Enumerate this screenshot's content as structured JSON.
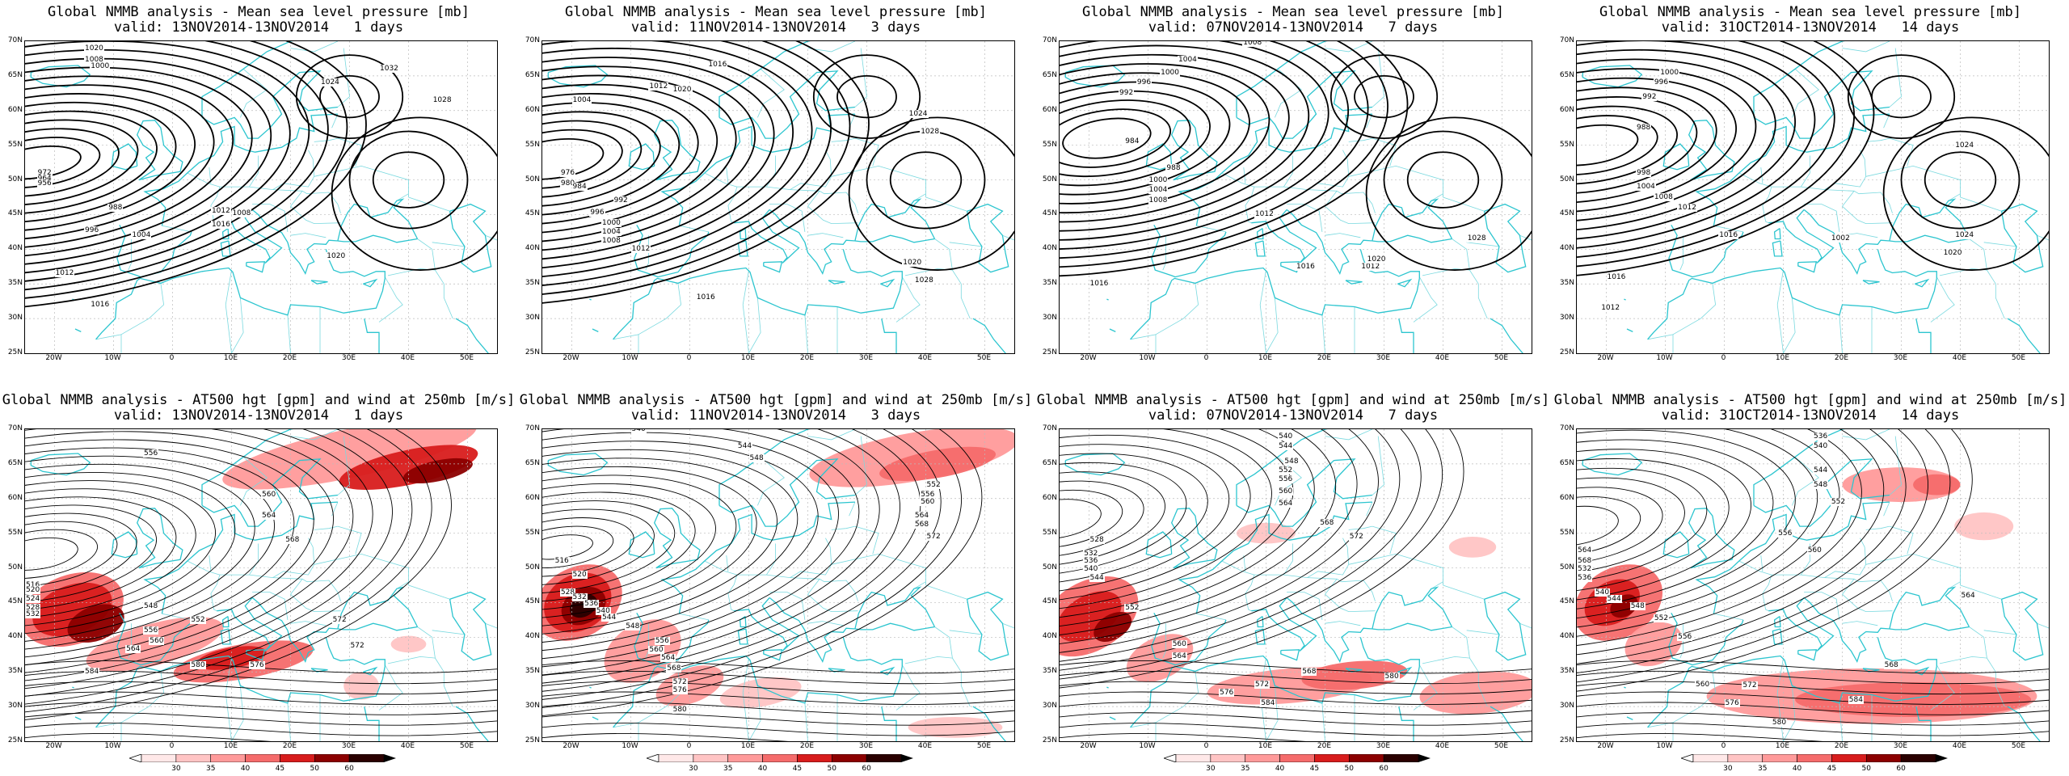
{
  "panels": [
    {
      "title": "Global NMMB analysis - Mean sea level pressure [mb]",
      "valid": "valid: 13NOV2014-13NOV2014   1 days",
      "kind": "mslp"
    },
    {
      "title": "Global NMMB analysis - Mean sea level pressure [mb]",
      "valid": "valid: 11NOV2014-13NOV2014   3 days",
      "kind": "mslp"
    },
    {
      "title": "Global NMMB analysis - Mean sea level pressure [mb]",
      "valid": "valid: 07NOV2014-13NOV2014   7 days",
      "kind": "mslp"
    },
    {
      "title": "Global NMMB analysis - Mean sea level pressure [mb]",
      "valid": "valid: 31OCT2014-13NOV2014   14 days",
      "kind": "mslp"
    },
    {
      "title": "Global NMMB analysis - AT500 hgt [gpm] and wind at 250mb [m/s]",
      "valid": "valid: 13NOV2014-13NOV2014   1 days",
      "kind": "z500"
    },
    {
      "title": "Global NMMB analysis - AT500 hgt [gpm] and wind at 250mb [m/s]",
      "valid": "valid: 11NOV2014-13NOV2014   3 days",
      "kind": "z500"
    },
    {
      "title": "Global NMMB analysis - AT500 hgt [gpm] and wind at 250mb [m/s]",
      "valid": "valid: 07NOV2014-13NOV2014   7 days",
      "kind": "z500"
    },
    {
      "title": "Global NMMB analysis - AT500 hgt [gpm] and wind at 250mb [m/s]",
      "valid": "valid: 31OCT2014-13NOV2014   14 days",
      "kind": "z500"
    }
  ],
  "lat_labels": [
    "70N",
    "65N",
    "60N",
    "55N",
    "50N",
    "45N",
    "40N",
    "35N",
    "30N",
    "25N"
  ],
  "lon_labels": [
    "20W",
    "10W",
    "0",
    "10E",
    "20E",
    "30E",
    "40E",
    "50E"
  ],
  "colorbar": {
    "labels": [
      "30",
      "35",
      "40",
      "45",
      "50",
      "60"
    ],
    "colors": [
      "#ffe8e8",
      "#ffc4c4",
      "#ff9a9a",
      "#f56b6b",
      "#d81c1c",
      "#8c0000",
      "#2a0000"
    ]
  },
  "contour_labels": {
    "mslp": [
      [
        "1020",
        "1008",
        "1000",
        "972",
        "964",
        "956",
        "988",
        "996",
        "1004",
        "1012",
        "1016",
        "1024",
        "1032",
        "1028",
        "1008",
        "1012",
        "1016",
        "1020"
      ],
      [
        "1016",
        "1004",
        "1012",
        "1020",
        "1024",
        "1028",
        "976",
        "980",
        "984",
        "992",
        "996",
        "1000",
        "1004",
        "1008",
        "1012",
        "1016",
        "1020",
        "1028"
      ],
      [
        "1008",
        "1004",
        "1000",
        "996",
        "992",
        "984",
        "988",
        "1012",
        "1016",
        "1012",
        "1020",
        "1028",
        "1016",
        "1008",
        "1000",
        "1004"
      ],
      [
        "1000",
        "996",
        "992",
        "988",
        "998",
        "1004",
        "1008",
        "1012",
        "1016",
        "1024",
        "1020",
        "1002",
        "1024",
        "1016",
        "1012"
      ]
    ],
    "z500": [
      [
        "556",
        "560",
        "564",
        "568",
        "572",
        "576",
        "580",
        "584",
        "516",
        "520",
        "524",
        "528",
        "532",
        "548",
        "552",
        "556",
        "560",
        "564",
        "572"
      ],
      [
        "540",
        "544",
        "548",
        "552",
        "556",
        "560",
        "564",
        "568",
        "572",
        "516",
        "520",
        "528",
        "532",
        "536",
        "540",
        "544",
        "548",
        "556",
        "560",
        "564",
        "568",
        "572",
        "576",
        "580"
      ],
      [
        "540",
        "544",
        "548",
        "552",
        "556",
        "560",
        "564",
        "568",
        "572",
        "528",
        "532",
        "536",
        "540",
        "544",
        "552",
        "560",
        "564",
        "568",
        "572",
        "576",
        "580",
        "584"
      ],
      [
        "536",
        "540",
        "544",
        "548",
        "552",
        "556",
        "560",
        "564",
        "568",
        "532",
        "536",
        "540",
        "544",
        "548",
        "552",
        "556",
        "560",
        "564",
        "568",
        "572",
        "576",
        "580",
        "584"
      ]
    ]
  }
}
